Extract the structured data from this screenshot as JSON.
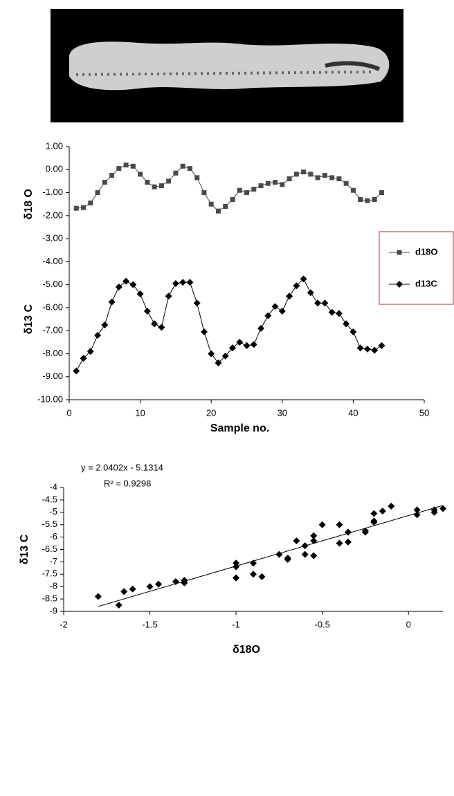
{
  "chart_data": [
    {
      "type": "line",
      "x": [
        1,
        2,
        3,
        4,
        5,
        6,
        7,
        8,
        9,
        10,
        11,
        12,
        13,
        14,
        15,
        16,
        17,
        18,
        19,
        20,
        21,
        22,
        23,
        24,
        25,
        26,
        27,
        28,
        29,
        30,
        31,
        32,
        33,
        34,
        35,
        36,
        37,
        38,
        39,
        40,
        41,
        42,
        43,
        44
      ],
      "series": [
        {
          "name": "d18O",
          "color": "#4a4a4a",
          "marker": "square",
          "values": [
            -1.68,
            -1.65,
            -1.45,
            -1.0,
            -0.55,
            -0.25,
            0.05,
            0.2,
            0.15,
            -0.2,
            -0.55,
            -0.75,
            -0.7,
            -0.5,
            -0.15,
            0.15,
            0.05,
            -0.35,
            -1.0,
            -1.5,
            -1.8,
            -1.6,
            -1.3,
            -0.9,
            -1.0,
            -0.85,
            -0.7,
            -0.6,
            -0.55,
            -0.65,
            -0.4,
            -0.2,
            -0.1,
            -0.2,
            -0.35,
            -0.25,
            -0.35,
            -0.4,
            -0.6,
            -0.9,
            -1.3,
            -1.35,
            -1.3,
            -1.0
          ]
        },
        {
          "name": "d13C",
          "color": "#000000",
          "marker": "diamond",
          "values": [
            -8.75,
            -8.2,
            -7.9,
            -7.2,
            -6.75,
            -5.75,
            -5.1,
            -4.85,
            -5.0,
            -5.4,
            -6.15,
            -6.7,
            -6.85,
            -5.5,
            -4.95,
            -4.9,
            -4.9,
            -5.8,
            -7.05,
            -8.0,
            -8.4,
            -8.1,
            -7.75,
            -7.5,
            -7.65,
            -7.6,
            -6.9,
            -6.35,
            -5.95,
            -6.15,
            -5.5,
            -5.05,
            -4.75,
            -5.35,
            -5.8,
            -5.8,
            -6.2,
            -6.25,
            -6.7,
            -7.05,
            -7.75,
            -7.8,
            -7.85,
            -7.65
          ]
        }
      ],
      "xlabel": "Sample no.",
      "ylabels": [
        "δ18 O",
        "δ13 C"
      ],
      "xlim": [
        0,
        50
      ],
      "xticks": [
        0,
        10,
        20,
        30,
        40,
        50
      ],
      "ylim": [
        -10,
        1
      ],
      "yticks": [
        {
          "value": 1,
          "label": "1.00"
        },
        {
          "value": 0,
          "label": "0.00"
        },
        {
          "value": -1,
          "label": "-1.00"
        },
        {
          "value": -2,
          "label": "-2.00"
        },
        {
          "value": -3,
          "label": "-3.00"
        },
        {
          "value": -4,
          "label": "-4.00"
        },
        {
          "value": -5,
          "label": "-5.00"
        },
        {
          "value": -6,
          "label": "-6.00"
        },
        {
          "value": -7,
          "label": "-7.00"
        },
        {
          "value": -8,
          "label": "-8.00"
        },
        {
          "value": -9,
          "label": "-9.00"
        },
        {
          "value": -10,
          "label": "-10.00"
        }
      ],
      "legend": "right",
      "grid": false
    },
    {
      "type": "scatter",
      "color": "#000000",
      "marker": "diamond",
      "x": [
        -1.68,
        -1.65,
        -1.45,
        -1.0,
        -0.55,
        -0.25,
        0.05,
        0.2,
        0.15,
        -0.2,
        -0.55,
        -0.75,
        -0.7,
        -0.5,
        -0.15,
        0.15,
        0.05,
        -0.35,
        -1.0,
        -1.5,
        -1.8,
        -1.6,
        -1.3,
        -0.9,
        -1.0,
        -0.85,
        -0.7,
        -0.6,
        -0.55,
        -0.65,
        -0.4,
        -0.2,
        -0.1,
        -0.2,
        -0.35,
        -0.25,
        -0.35,
        -0.4,
        -0.6,
        -0.9,
        -1.3,
        -1.35,
        -1.3,
        -1.0
      ],
      "values": [
        -8.75,
        -8.2,
        -7.9,
        -7.2,
        -6.75,
        -5.75,
        -5.1,
        -4.85,
        -5.0,
        -5.4,
        -6.15,
        -6.7,
        -6.85,
        -5.5,
        -4.95,
        -4.9,
        -4.9,
        -5.8,
        -7.05,
        -8.0,
        -8.4,
        -8.1,
        -7.75,
        -7.5,
        -7.65,
        -7.6,
        -6.9,
        -6.35,
        -5.95,
        -6.15,
        -5.5,
        -5.05,
        -4.75,
        -5.35,
        -5.8,
        -5.8,
        -6.2,
        -6.25,
        -6.7,
        -7.05,
        -7.75,
        -7.8,
        -7.85,
        -7.65
      ],
      "trendline": {
        "label": "y = 2.0402x - 5.1314",
        "r2_label": "R² = 0.9298",
        "slope": 2.0402,
        "intercept": -5.1314
      },
      "xlabel": "δ18O",
      "ylabel": "δ13 C",
      "xlim": [
        -2,
        0.2
      ],
      "xticks": [
        -2,
        -1.5,
        -1,
        -0.5,
        0
      ],
      "ylim": [
        -9,
        -4
      ],
      "yticks": [
        -4,
        -4.5,
        -5,
        -5.5,
        -6,
        -6.5,
        -7,
        -7.5,
        -8,
        -8.5,
        -9
      ],
      "grid": false
    }
  ]
}
